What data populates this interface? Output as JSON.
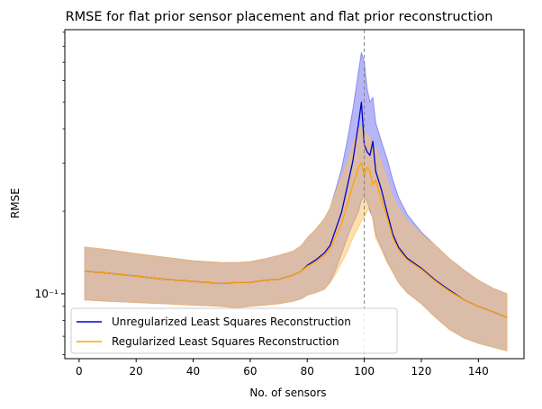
{
  "chart_data": {
    "type": "line",
    "title": "RMSE for flat prior sensor placement and flat prior reconstruction",
    "xlabel": "No. of sensors",
    "ylabel": "RMSE",
    "xlim": [
      -5,
      156
    ],
    "ylim": [
      0.058,
      0.92
    ],
    "y_scale": "log",
    "x_ticks": [
      0,
      20,
      40,
      60,
      80,
      100,
      120,
      140
    ],
    "x_tick_labels": [
      "0",
      "20",
      "40",
      "60",
      "80",
      "100",
      "120",
      "140"
    ],
    "y_major_ticks": [
      0.1
    ],
    "y_major_tick_labels": [
      "10⁻¹"
    ],
    "y_minor_ticks": [
      0.06,
      0.07,
      0.08,
      0.09,
      0.2,
      0.3,
      0.4,
      0.5,
      0.6,
      0.7,
      0.8,
      0.9
    ],
    "grid": false,
    "legend_position": "lower-left",
    "vline": {
      "x": 100,
      "color": "#808080",
      "style": "dashed"
    },
    "x": [
      2,
      10,
      20,
      30,
      40,
      50,
      55,
      60,
      65,
      70,
      75,
      78,
      80,
      83,
      86,
      88,
      90,
      92,
      94,
      96,
      98,
      99,
      100,
      101,
      102,
      103,
      104,
      106,
      108,
      110,
      112,
      115,
      120,
      125,
      130,
      135,
      140,
      145,
      150
    ],
    "series": [
      {
        "name": "Unregularized Least Squares Reconstruction",
        "color": "#0000cd",
        "band_color": "#6e6eef",
        "values": [
          0.121,
          0.119,
          0.116,
          0.113,
          0.111,
          0.109,
          0.11,
          0.11,
          0.112,
          0.113,
          0.117,
          0.121,
          0.127,
          0.133,
          0.141,
          0.15,
          0.172,
          0.198,
          0.245,
          0.305,
          0.42,
          0.5,
          0.35,
          0.33,
          0.32,
          0.36,
          0.28,
          0.24,
          0.198,
          0.165,
          0.148,
          0.135,
          0.124,
          0.112,
          0.103,
          0.095,
          0.09,
          0.086,
          0.082
        ],
        "lower": [
          0.095,
          0.094,
          0.093,
          0.092,
          0.091,
          0.09,
          0.089,
          0.09,
          0.091,
          0.092,
          0.094,
          0.096,
          0.099,
          0.101,
          0.104,
          0.11,
          0.123,
          0.14,
          0.16,
          0.18,
          0.2,
          0.22,
          0.225,
          0.218,
          0.2,
          0.19,
          0.165,
          0.148,
          0.132,
          0.12,
          0.11,
          0.101,
          0.092,
          0.082,
          0.074,
          0.069,
          0.066,
          0.064,
          0.062
        ],
        "upper": [
          0.148,
          0.145,
          0.14,
          0.136,
          0.132,
          0.13,
          0.13,
          0.131,
          0.134,
          0.138,
          0.143,
          0.15,
          0.16,
          0.172,
          0.188,
          0.205,
          0.24,
          0.285,
          0.36,
          0.47,
          0.65,
          0.76,
          0.7,
          0.56,
          0.5,
          0.52,
          0.42,
          0.36,
          0.31,
          0.26,
          0.225,
          0.195,
          0.168,
          0.15,
          0.134,
          0.122,
          0.112,
          0.105,
          0.1
        ]
      },
      {
        "name": "Regularized Least Squares Reconstruction",
        "color": "#ffa500",
        "band_color": "#ffc15a",
        "values": [
          0.121,
          0.119,
          0.116,
          0.113,
          0.111,
          0.109,
          0.11,
          0.11,
          0.112,
          0.113,
          0.117,
          0.121,
          0.126,
          0.131,
          0.138,
          0.146,
          0.162,
          0.18,
          0.21,
          0.25,
          0.29,
          0.3,
          0.27,
          0.29,
          0.28,
          0.25,
          0.26,
          0.22,
          0.19,
          0.16,
          0.145,
          0.133,
          0.123,
          0.111,
          0.102,
          0.095,
          0.09,
          0.086,
          0.082
        ],
        "lower": [
          0.095,
          0.094,
          0.093,
          0.092,
          0.091,
          0.09,
          0.089,
          0.09,
          0.091,
          0.092,
          0.094,
          0.096,
          0.099,
          0.101,
          0.104,
          0.11,
          0.118,
          0.13,
          0.142,
          0.16,
          0.175,
          0.185,
          0.19,
          0.2,
          0.21,
          0.185,
          0.16,
          0.145,
          0.13,
          0.12,
          0.11,
          0.101,
          0.092,
          0.082,
          0.074,
          0.069,
          0.066,
          0.064,
          0.062
        ],
        "upper": [
          0.148,
          0.145,
          0.14,
          0.136,
          0.132,
          0.13,
          0.13,
          0.131,
          0.134,
          0.138,
          0.143,
          0.15,
          0.16,
          0.172,
          0.188,
          0.205,
          0.235,
          0.265,
          0.3,
          0.35,
          0.4,
          0.41,
          0.39,
          0.38,
          0.37,
          0.34,
          0.34,
          0.3,
          0.26,
          0.225,
          0.205,
          0.185,
          0.165,
          0.15,
          0.134,
          0.122,
          0.112,
          0.105,
          0.1
        ]
      }
    ]
  }
}
